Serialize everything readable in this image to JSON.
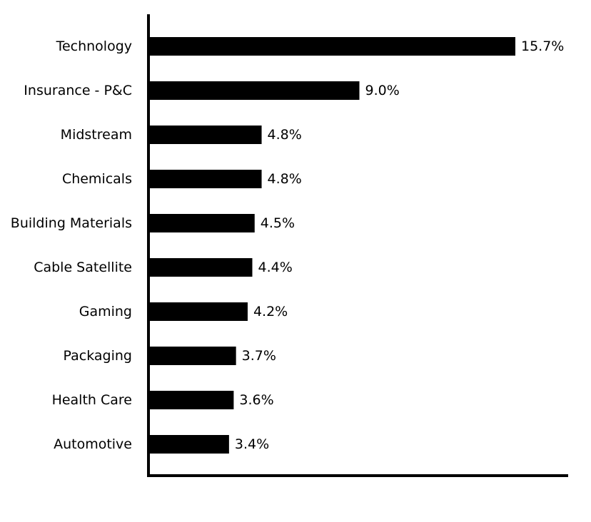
{
  "chart_data": {
    "type": "bar",
    "orientation": "horizontal",
    "categories": [
      "Technology",
      "Insurance - P&C",
      "Midstream",
      "Chemicals",
      "Building Materials",
      "Cable Satellite",
      "Gaming",
      "Packaging",
      "Health Care",
      "Automotive"
    ],
    "values": [
      15.7,
      9.0,
      4.8,
      4.8,
      4.5,
      4.4,
      4.2,
      3.7,
      3.6,
      3.4
    ],
    "value_labels": [
      "15.7%",
      "9.0%",
      "4.8%",
      "4.8%",
      "4.5%",
      "4.4%",
      "4.2%",
      "3.7%",
      "3.6%",
      "3.4%"
    ],
    "title": "",
    "xlabel": "",
    "ylabel": "",
    "xlim": [
      0,
      18
    ],
    "grid": false,
    "bar_color": "#000000"
  }
}
